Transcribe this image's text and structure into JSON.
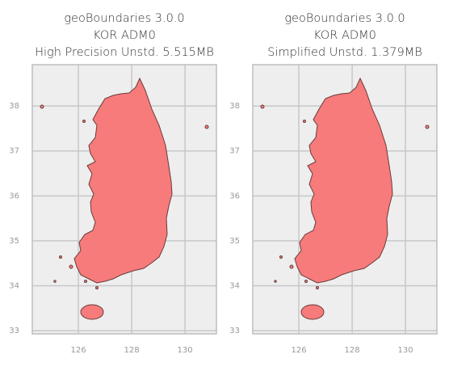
{
  "chart_data": [
    {
      "type": "map",
      "title": [
        "geoBoundaries 3.0.0",
        "KOR ADM0",
        "High Precision Unstd. 5.515MB"
      ],
      "color": "#f77b7b",
      "xlim": [
        124.27,
        131.18
      ],
      "ylim": [
        32.93,
        38.92
      ],
      "xticks": [
        126,
        128,
        130
      ],
      "yticks": [
        33,
        34,
        35,
        36,
        37,
        38
      ],
      "grid": true
    },
    {
      "type": "map",
      "title": [
        "geoBoundaries 3.0.0",
        "KOR ADM0",
        "Simplified Unstd. 1.379MB"
      ],
      "color": "#f77b7b",
      "xlim": [
        124.27,
        131.18
      ],
      "ylim": [
        32.93,
        38.92
      ],
      "xticks": [
        126,
        128,
        130
      ],
      "yticks": [
        33,
        34,
        35,
        36,
        37,
        38
      ],
      "grid": true
    }
  ]
}
